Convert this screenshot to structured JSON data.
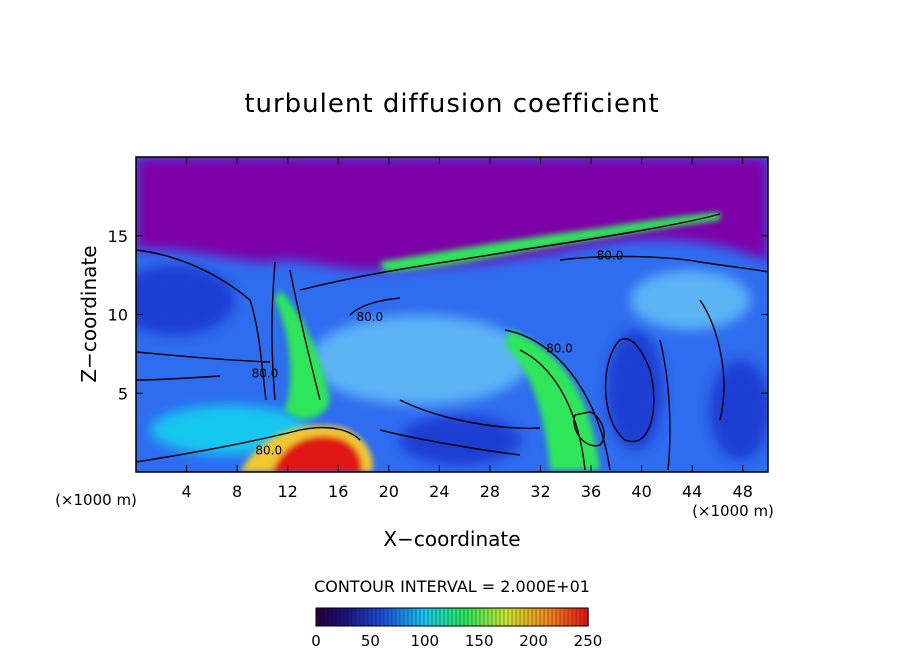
{
  "chart_data": {
    "type": "heatmap",
    "title": "turbulent diffusion coefficient",
    "xlabel": "X−coordinate",
    "ylabel": "Z−coordinate",
    "x_unit_left": "(×1000 m)",
    "x_unit_right": "(×1000 m)",
    "xlim": [
      0,
      50
    ],
    "ylim": [
      0,
      20
    ],
    "x_ticks": [
      4,
      8,
      12,
      16,
      20,
      24,
      28,
      32,
      36,
      40,
      44,
      48
    ],
    "y_ticks": [
      5,
      10,
      15
    ],
    "contour_interval_text": "CONTOUR INTERVAL = 2.000E+01",
    "contour_interval": 20,
    "contour_labels": [
      {
        "text": "80.0",
        "x": 10.2,
        "y": 6.0
      },
      {
        "text": "80.0",
        "x": 10.5,
        "y": 1.1
      },
      {
        "text": "80.0",
        "x": 33.5,
        "y": 7.6
      },
      {
        "text": "80.0",
        "x": 37.5,
        "y": 13.5
      },
      {
        "text": "80.0",
        "x": 18.5,
        "y": 9.6
      }
    ],
    "colorbar": {
      "min": 0,
      "max": 250,
      "tick_values": [
        0,
        50,
        100,
        150,
        200,
        250
      ],
      "tick_labels": [
        "0",
        "50",
        "100",
        "150",
        "200",
        "250"
      ]
    },
    "colors": {
      "top_layer": "#7d00a8",
      "scale_low": "#1e0f78",
      "scale_mid": "#19c8f0",
      "scale_green": "#2de65a",
      "scale_high": "#e11414"
    }
  }
}
